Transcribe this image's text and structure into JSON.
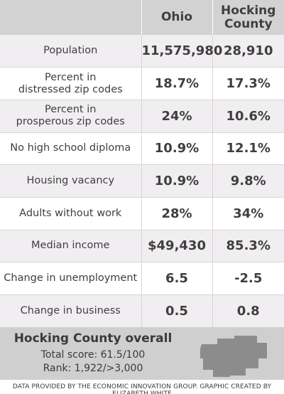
{
  "chart_data": {
    "type": "table",
    "header": {
      "label": "",
      "col1": "Ohio",
      "col2_line1": "Hocking",
      "col2_line2": "County"
    },
    "rows": [
      {
        "label1": "Population",
        "label2": "",
        "ohio": "11,575,980",
        "county": "28,910"
      },
      {
        "label1": "Percent in",
        "label2": "distressed zip codes",
        "ohio": "18.7%",
        "county": "17.3%"
      },
      {
        "label1": "Percent in",
        "label2": "prosperous zip codes",
        "ohio": "24%",
        "county": "10.6%"
      },
      {
        "label1": "No high school diploma",
        "label2": "",
        "ohio": "10.9%",
        "county": "12.1%"
      },
      {
        "label1": "Housing vacancy",
        "label2": "",
        "ohio": "10.9%",
        "county": "9.8%"
      },
      {
        "label1": "Adults without work",
        "label2": "",
        "ohio": "28%",
        "county": "34%"
      },
      {
        "label1": "Median income",
        "label2": "",
        "ohio": "$49,430",
        "county": "85.3%"
      },
      {
        "label1": "Change in unemployment",
        "label2": "",
        "ohio": "6.5",
        "county": "-2.5"
      },
      {
        "label1": "Change in business",
        "label2": "",
        "ohio": "0.5",
        "county": "0.8"
      }
    ]
  },
  "summary": {
    "title": "Hocking County overall",
    "score": "Total score: 61.5/100",
    "rank": "Rank: 1,922/>3,000"
  },
  "credit": "DATA PROVIDED BY THE ECONOMIC INNOVATION GROUP. GRAPHIC CREATED BY ELIZABETH WHITE",
  "colors": {
    "header_bg": "#d2d2d2",
    "row_alt_bg": "#f1eef1",
    "footer_bg": "#cfcfcf",
    "map_fill": "#8c8c8c",
    "text": "#3f3f3f"
  },
  "icons": {
    "county_map": "hocking-county-map-icon"
  }
}
